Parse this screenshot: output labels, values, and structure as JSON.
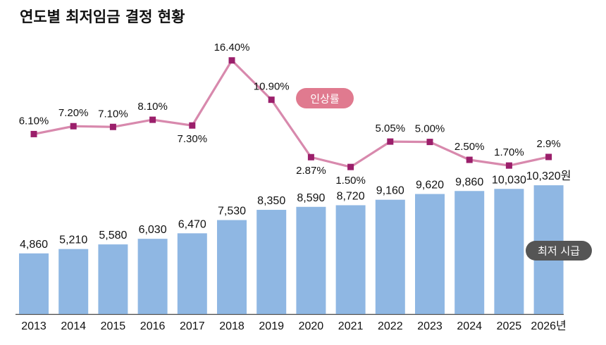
{
  "title": "연도별 최저임금 결정 현황",
  "colors": {
    "bar": "#8fb7e3",
    "line": "#d889ad",
    "marker": "#9b1f6b",
    "rate_badge": "#e07a8f",
    "wage_badge": "#555555",
    "axis": "#444444"
  },
  "chart_data": {
    "type": "bar",
    "categories": [
      "2013",
      "2014",
      "2015",
      "2016",
      "2017",
      "2018",
      "2019",
      "2020",
      "2021",
      "2022",
      "2023",
      "2024",
      "2025",
      "2026년"
    ],
    "series": [
      {
        "name": "최저 시급",
        "type": "bar",
        "values": [
          4860,
          5210,
          5580,
          6030,
          6470,
          7530,
          8350,
          8590,
          8720,
          9160,
          9620,
          9860,
          10030,
          10320
        ],
        "value_labels": [
          "4,860",
          "5,210",
          "5,580",
          "6,030",
          "6,470",
          "7,530",
          "8,350",
          "8,590",
          "8,720",
          "9,160",
          "9,620",
          "9,860",
          "10,030",
          "10,320원"
        ]
      },
      {
        "name": "인상률",
        "type": "line",
        "values": [
          6.1,
          7.2,
          7.1,
          8.1,
          7.3,
          16.4,
          10.9,
          2.87,
          1.5,
          5.05,
          5.0,
          2.5,
          1.7,
          2.9
        ],
        "value_labels": [
          "6.10%",
          "7.20%",
          "7.10%",
          "8.10%",
          "7.30%",
          "16.40%",
          "10.90%",
          "2.87%",
          "1.50%",
          "5.05%",
          "5.00%",
          "2.50%",
          "1.70%",
          "2.9%"
        ]
      }
    ],
    "legend": "inline badges",
    "grid": false
  }
}
